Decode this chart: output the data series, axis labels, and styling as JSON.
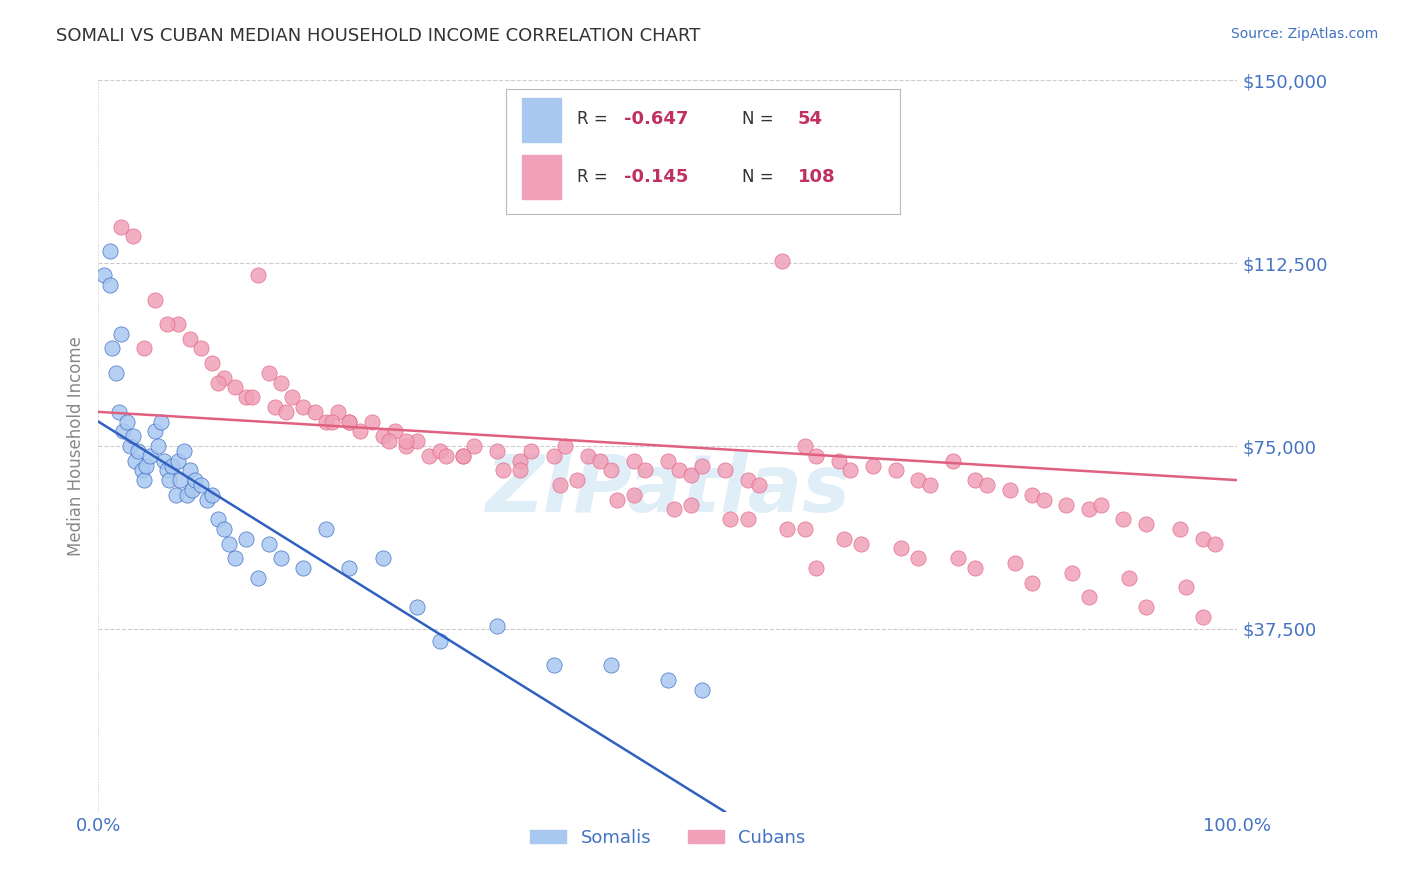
{
  "title": "SOMALI VS CUBAN MEDIAN HOUSEHOLD INCOME CORRELATION CHART",
  "source_text": "Source: ZipAtlas.com",
  "ylabel": "Median Household Income",
  "xlim": [
    0.0,
    100.0
  ],
  "ylim": [
    0,
    150000
  ],
  "yticks": [
    0,
    37500,
    75000,
    112500,
    150000
  ],
  "ytick_labels": [
    "",
    "$37,500",
    "$75,000",
    "$112,500",
    "$150,000"
  ],
  "somali_color": "#A8C8F0",
  "cuban_color": "#F0A0B8",
  "somali_line_color": "#3060C0",
  "cuban_line_color": "#E06080",
  "legend_R_somali": "-0.647",
  "legend_N_somali": "54",
  "legend_R_cuban": "-0.145",
  "legend_N_cuban": "108",
  "legend_label_somali": "Somalis",
  "legend_label_cuban": "Cubans",
  "watermark": "ZIPatlas",
  "title_color": "#333333",
  "axis_label_color": "#4472C4",
  "grid_color": "#CCCCCC",
  "background_color": "#FFFFFF",
  "somali_line_x0": 0.0,
  "somali_line_y0": 80000,
  "somali_line_x1": 55.0,
  "somali_line_y1": 0,
  "cuban_line_x0": 0.0,
  "cuban_line_y0": 82000,
  "cuban_line_x1": 100.0,
  "cuban_line_y1": 68000,
  "somali_x": [
    0.5,
    1.0,
    1.2,
    1.5,
    1.8,
    2.0,
    2.2,
    2.5,
    2.8,
    3.0,
    3.2,
    3.5,
    3.8,
    4.0,
    4.2,
    4.5,
    5.0,
    5.2,
    5.5,
    5.8,
    6.0,
    6.2,
    6.5,
    6.8,
    7.0,
    7.2,
    7.5,
    7.8,
    8.0,
    8.2,
    8.5,
    9.0,
    9.5,
    10.0,
    10.5,
    11.0,
    11.5,
    12.0,
    13.0,
    14.0,
    15.0,
    16.0,
    18.0,
    20.0,
    22.0,
    25.0,
    28.0,
    30.0,
    35.0,
    40.0,
    45.0,
    50.0,
    53.0,
    1.0
  ],
  "somali_y": [
    110000,
    108000,
    95000,
    90000,
    82000,
    98000,
    78000,
    80000,
    75000,
    77000,
    72000,
    74000,
    70000,
    68000,
    71000,
    73000,
    78000,
    75000,
    80000,
    72000,
    70000,
    68000,
    71000,
    65000,
    72000,
    68000,
    74000,
    65000,
    70000,
    66000,
    68000,
    67000,
    64000,
    65000,
    60000,
    58000,
    55000,
    52000,
    56000,
    48000,
    55000,
    52000,
    50000,
    58000,
    50000,
    52000,
    42000,
    35000,
    38000,
    30000,
    30000,
    27000,
    25000,
    115000
  ],
  "cuban_x": [
    2.0,
    3.0,
    5.0,
    7.0,
    8.0,
    9.0,
    10.0,
    11.0,
    12.0,
    13.0,
    14.0,
    15.0,
    16.0,
    17.0,
    18.0,
    19.0,
    20.0,
    21.0,
    22.0,
    23.0,
    24.0,
    25.0,
    26.0,
    27.0,
    28.0,
    29.0,
    30.0,
    32.0,
    33.0,
    35.0,
    37.0,
    38.0,
    40.0,
    41.0,
    43.0,
    44.0,
    45.0,
    47.0,
    48.0,
    50.0,
    51.0,
    52.0,
    53.0,
    55.0,
    57.0,
    58.0,
    60.0,
    62.0,
    63.0,
    65.0,
    66.0,
    68.0,
    70.0,
    72.0,
    73.0,
    75.0,
    77.0,
    78.0,
    80.0,
    82.0,
    83.0,
    85.0,
    87.0,
    88.0,
    90.0,
    92.0,
    95.0,
    97.0,
    98.0,
    6.0,
    4.0,
    15.5,
    20.5,
    25.5,
    30.5,
    35.5,
    40.5,
    45.5,
    50.5,
    55.5,
    60.5,
    65.5,
    70.5,
    75.5,
    80.5,
    85.5,
    90.5,
    95.5,
    10.5,
    13.5,
    16.5,
    22.0,
    27.0,
    32.0,
    37.0,
    42.0,
    47.0,
    52.0,
    57.0,
    62.0,
    67.0,
    72.0,
    77.0,
    82.0,
    87.0,
    92.0,
    97.0,
    63.0
  ],
  "cuban_y": [
    120000,
    118000,
    105000,
    100000,
    97000,
    95000,
    92000,
    89000,
    87000,
    85000,
    110000,
    90000,
    88000,
    85000,
    83000,
    82000,
    80000,
    82000,
    80000,
    78000,
    80000,
    77000,
    78000,
    75000,
    76000,
    73000,
    74000,
    73000,
    75000,
    74000,
    72000,
    74000,
    73000,
    75000,
    73000,
    72000,
    70000,
    72000,
    70000,
    72000,
    70000,
    69000,
    71000,
    70000,
    68000,
    67000,
    113000,
    75000,
    73000,
    72000,
    70000,
    71000,
    70000,
    68000,
    67000,
    72000,
    68000,
    67000,
    66000,
    65000,
    64000,
    63000,
    62000,
    63000,
    60000,
    59000,
    58000,
    56000,
    55000,
    100000,
    95000,
    83000,
    80000,
    76000,
    73000,
    70000,
    67000,
    64000,
    62000,
    60000,
    58000,
    56000,
    54000,
    52000,
    51000,
    49000,
    48000,
    46000,
    88000,
    85000,
    82000,
    80000,
    76000,
    73000,
    70000,
    68000,
    65000,
    63000,
    60000,
    58000,
    55000,
    52000,
    50000,
    47000,
    44000,
    42000,
    40000,
    50000
  ]
}
